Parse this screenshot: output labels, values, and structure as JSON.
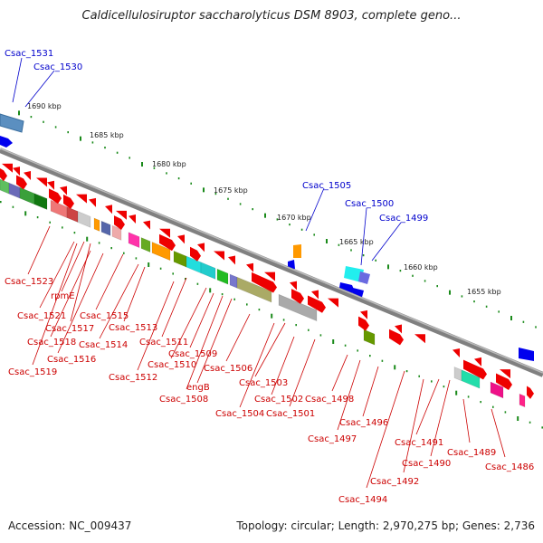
{
  "title": "Caldicellulosiruptor saccharolyticus DSM 8903, complete geno...",
  "footer": {
    "accession": "Accession: NC_009437",
    "summary": "Topology: circular; Length: 2,970,275 bp; Genes: 2,736"
  },
  "colors": {
    "forward_label": "#0000cc",
    "reverse_label": "#cc0000",
    "gene_red": "#ee0000",
    "gene_blue": "#0000ee",
    "axis": "#808080",
    "ticks": "#1a8a1a",
    "kbp_label": "#222222"
  },
  "kbp_ticks": [
    "1690 kbp",
    "1685 kbp",
    "1680 kbp",
    "1675 kbp",
    "1670 kbp",
    "1665 kbp",
    "1660 kbp",
    "1655 kbp"
  ],
  "forward_labels": [
    "Csac_1531",
    "Csac_1530",
    "Csac_1505",
    "Csac_1500",
    "Csac_1499"
  ],
  "reverse_labels": [
    "Csac_1523",
    "rpmE",
    "Csac_1521",
    "Csac_1517",
    "Csac_1518",
    "Csac_1516",
    "Csac_1519",
    "Csac_1515",
    "Csac_1514",
    "Csac_1513",
    "Csac_1512",
    "Csac_1511",
    "Csac_1510",
    "Csac_1509",
    "Csac_1508",
    "engB",
    "Csac_1506",
    "Csac_1503",
    "Csac_1504",
    "Csac_1502",
    "Csac_1501",
    "Csac_1498",
    "Csac_1497",
    "Csac_1496",
    "Csac_1494",
    "Csac_1492",
    "Csac_1491",
    "Csac_1490",
    "Csac_1489",
    "Csac_1486"
  ]
}
